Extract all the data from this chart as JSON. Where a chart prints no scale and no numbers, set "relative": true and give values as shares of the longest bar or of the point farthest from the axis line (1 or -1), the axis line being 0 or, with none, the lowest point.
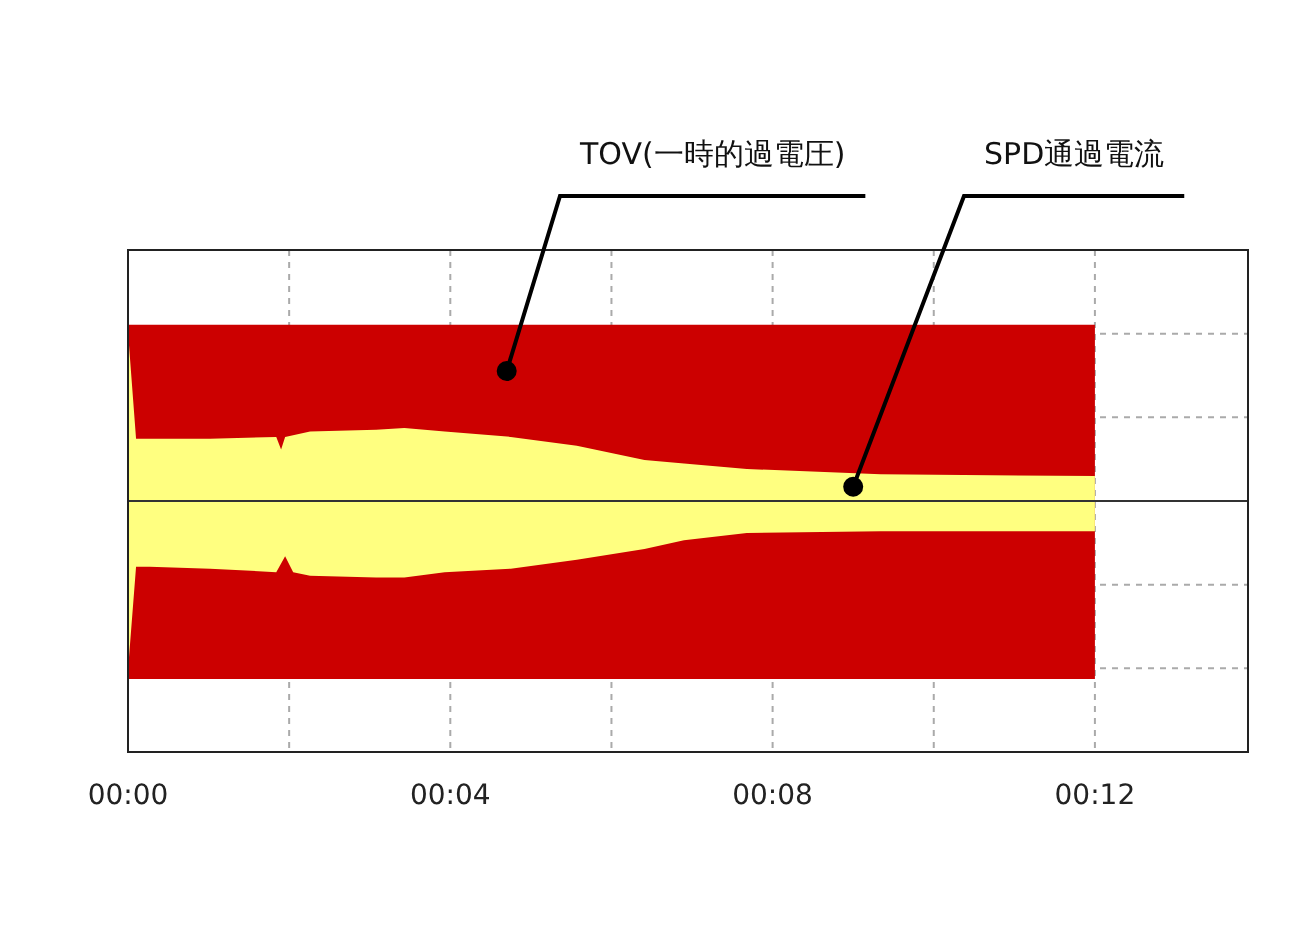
{
  "chart_data": {
    "type": "area",
    "relative": true,
    "grid": true,
    "xlim": [
      0,
      13.9
    ],
    "xticks": [
      {
        "value": 0,
        "label": "00:00"
      },
      {
        "value": 2,
        "label": null
      },
      {
        "value": 4,
        "label": "00:04"
      },
      {
        "value": 6,
        "label": null
      },
      {
        "value": 8,
        "label": "00:08"
      },
      {
        "value": 10,
        "label": null
      },
      {
        "value": 12,
        "label": "00:12"
      }
    ],
    "series": [
      {
        "color": "#cc0000",
        "x": [
          0,
          12
        ],
        "values": [
          0.99,
          0.99
        ]
      },
      {
        "color": "#cc0000",
        "x": [
          0,
          12
        ],
        "values": [
          -1,
          -1
        ]
      },
      {
        "color": "#ffff80",
        "x": [
          0,
          0.1,
          0.27,
          1.02,
          1.84,
          1.9,
          1.95,
          2.26,
          3.08,
          3.43,
          3.93,
          4.75,
          5.57,
          6.41,
          6.9,
          7.68,
          9.34,
          12
        ],
        "values": [
          0.95,
          0.35,
          0.35,
          0.35,
          0.36,
          0.29,
          0.36,
          0.39,
          0.4,
          0.41,
          0.39,
          0.36,
          0.31,
          0.23,
          0.21,
          0.18,
          0.15,
          0.14
        ]
      },
      {
        "color": "#ffff80",
        "x": [
          0,
          0.1,
          0.27,
          1.02,
          1.84,
          1.95,
          2.05,
          2.26,
          3.08,
          3.43,
          3.93,
          4.75,
          5.57,
          6.41,
          6.9,
          7.68,
          9.34,
          12
        ],
        "values": [
          -0.95,
          -0.37,
          -0.37,
          -0.38,
          -0.4,
          -0.31,
          -0.4,
          -0.42,
          -0.43,
          -0.43,
          -0.4,
          -0.38,
          -0.33,
          -0.27,
          -0.22,
          -0.18,
          -0.17,
          -0.17
        ]
      }
    ],
    "annotations": [
      {
        "text": "TOV(一時的過電圧)",
        "x": 4.7,
        "y": 0.73
      },
      {
        "text": "SPD通過電流",
        "x": 9.0,
        "y": 0.08
      }
    ]
  }
}
